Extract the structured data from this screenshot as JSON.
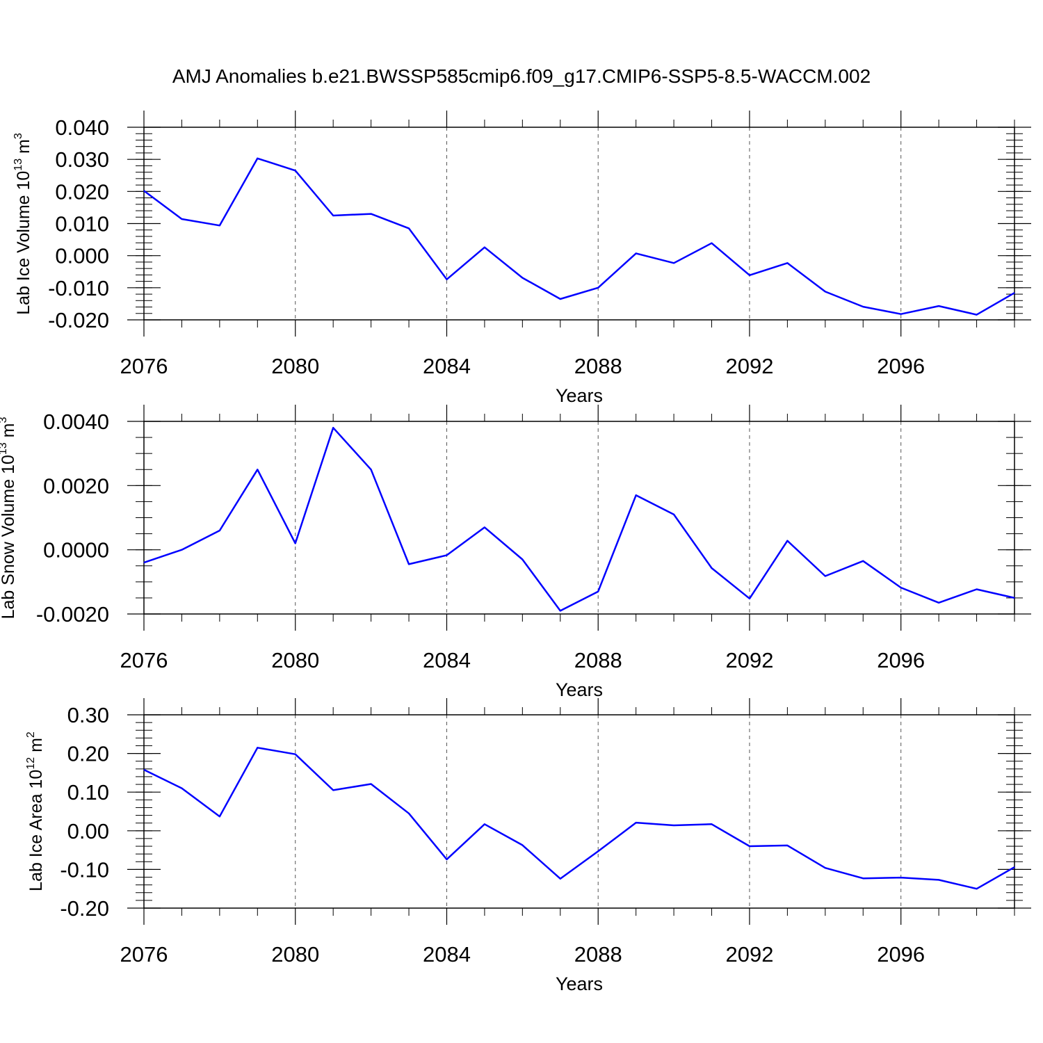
{
  "title": "AMJ Anomalies b.e21.BWSSP585cmip6.f09_g17.CMIP6-SSP5-8.5-WACCM.002",
  "line_color": "#0000ff",
  "chart_data": [
    {
      "type": "line",
      "title": "AMJ Anomalies b.e21.BWSSP585cmip6.f09_g17.CMIP6-SSP5-8.5-WACCM.002",
      "xlabel": "Years",
      "ylabel": {
        "text": "Lab Ice Volume 10",
        "sup": "13",
        "unit": " m",
        "unit_sup": "3"
      },
      "x": [
        2076,
        2077,
        2078,
        2079,
        2080,
        2081,
        2082,
        2083,
        2084,
        2085,
        2086,
        2087,
        2088,
        2089,
        2090,
        2091,
        2092,
        2093,
        2094,
        2095,
        2096,
        2097,
        2098,
        2099
      ],
      "values": [
        0.0202,
        0.0114,
        0.0094,
        0.0303,
        0.0265,
        0.0125,
        0.013,
        0.0085,
        -0.0074,
        0.0026,
        -0.0069,
        -0.0135,
        -0.01,
        0.0007,
        -0.0023,
        0.0039,
        -0.0061,
        -0.0023,
        -0.0112,
        -0.0159,
        -0.0182,
        -0.0157,
        -0.0184,
        -0.0116
      ],
      "xlim": [
        2076,
        2099
      ],
      "ylim": [
        -0.02,
        0.04
      ],
      "xticks": [
        2076,
        2080,
        2084,
        2088,
        2092,
        2096
      ],
      "xtick_labels": [
        "2076",
        "2080",
        "2084",
        "2088",
        "2092",
        "2096"
      ],
      "yticks": [
        -0.02,
        -0.01,
        0.0,
        0.01,
        0.02,
        0.03,
        0.04
      ],
      "ytick_labels": [
        "-0.020",
        "-0.010",
        "0.000",
        "0.010",
        "0.020",
        "0.030",
        "0.040"
      ],
      "yminor_step": 0.002,
      "grid": "vertical dashed at major x ticks"
    },
    {
      "type": "line",
      "xlabel": "Years",
      "ylabel": {
        "text": "Lab Snow Volume 10",
        "sup": "13",
        "unit": " m",
        "unit_sup": "3"
      },
      "x": [
        2076,
        2077,
        2078,
        2079,
        2080,
        2081,
        2082,
        2083,
        2084,
        2085,
        2086,
        2087,
        2088,
        2089,
        2090,
        2091,
        2092,
        2093,
        2094,
        2095,
        2096,
        2097,
        2098,
        2099
      ],
      "values": [
        -0.0004,
        0.0,
        0.0006,
        0.0025,
        0.0002,
        0.0038,
        0.0025,
        -0.00045,
        -0.00017,
        0.0007,
        -0.0003,
        -0.0019,
        -0.0013,
        0.0017,
        0.0011,
        -0.00057,
        -0.00152,
        0.00028,
        -0.00082,
        -0.00035,
        -0.00118,
        -0.00165,
        -0.00123,
        -0.0015
      ],
      "xlim": [
        2076,
        2099
      ],
      "ylim": [
        -0.002,
        0.004
      ],
      "xticks": [
        2076,
        2080,
        2084,
        2088,
        2092,
        2096
      ],
      "xtick_labels": [
        "2076",
        "2080",
        "2084",
        "2088",
        "2092",
        "2096"
      ],
      "yticks": [
        -0.002,
        0.0,
        0.002,
        0.004
      ],
      "ytick_labels": [
        "-0.0020",
        "0.0000",
        "0.0020",
        "0.0040"
      ],
      "yminor_step": 0.0005,
      "grid": "vertical dashed at major x ticks"
    },
    {
      "type": "line",
      "xlabel": "Years",
      "ylabel": {
        "text": "Lab Ice Area 10",
        "sup": "12",
        "unit": " m",
        "unit_sup": "2"
      },
      "x": [
        2076,
        2077,
        2078,
        2079,
        2080,
        2081,
        2082,
        2083,
        2084,
        2085,
        2086,
        2087,
        2088,
        2089,
        2090,
        2091,
        2092,
        2093,
        2094,
        2095,
        2096,
        2097,
        2098,
        2099
      ],
      "values": [
        0.158,
        0.11,
        0.037,
        0.215,
        0.198,
        0.105,
        0.121,
        0.045,
        -0.074,
        0.017,
        -0.037,
        -0.124,
        -0.053,
        0.021,
        0.014,
        0.017,
        -0.04,
        -0.038,
        -0.096,
        -0.123,
        -0.121,
        -0.127,
        -0.15,
        -0.094
      ],
      "xlim": [
        2076,
        2099
      ],
      "ylim": [
        -0.2,
        0.3
      ],
      "xticks": [
        2076,
        2080,
        2084,
        2088,
        2092,
        2096
      ],
      "xtick_labels": [
        "2076",
        "2080",
        "2084",
        "2088",
        "2092",
        "2096"
      ],
      "yticks": [
        -0.2,
        -0.1,
        0.0,
        0.1,
        0.2,
        0.3
      ],
      "ytick_labels": [
        "-0.20",
        "-0.10",
        "0.00",
        "0.10",
        "0.20",
        "0.30"
      ],
      "yminor_step": 0.02,
      "grid": "vertical dashed at major x ticks"
    }
  ]
}
